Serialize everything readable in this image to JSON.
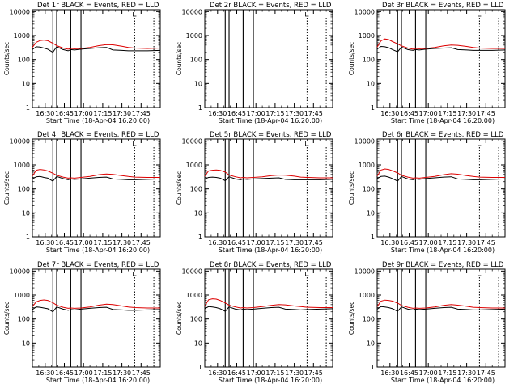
{
  "colors": {
    "events": "#000000",
    "lld": "#dd0000",
    "background": "#ffffff"
  },
  "panel_common": {
    "ylabel": "Counts/sec",
    "xlabel": "Start Time (18-Apr-04 16:20:00)",
    "x_ticks": [
      "16:30",
      "16:45",
      "17:00",
      "17:15",
      "17:30",
      "17:45"
    ],
    "y_ticks": [
      "1",
      "10",
      "100",
      "1000",
      "10000"
    ]
  },
  "chart_data": [
    {
      "type": "line",
      "title": "Det 1r BLACK = Events, RED = LLD",
      "xlim_min": [
        0,
        100
      ],
      "ylim": [
        1,
        12000
      ],
      "log_y": true,
      "solid_vlines_min": [
        16,
        19,
        30,
        38
      ],
      "dotted_vlines_min": [
        80,
        95
      ],
      "series": [
        {
          "role": "events",
          "x": [
            0,
            3,
            6,
            9,
            12,
            16,
            19,
            24,
            28,
            30,
            33,
            38,
            45,
            52,
            58,
            63,
            70,
            75,
            80,
            90,
            100
          ],
          "y": [
            260,
            340,
            330,
            300,
            270,
            200,
            340,
            260,
            230,
            260,
            250,
            270,
            290,
            310,
            320,
            250,
            240,
            230,
            230,
            230,
            240
          ]
        },
        {
          "role": "lld",
          "x": [
            0,
            3,
            6,
            9,
            12,
            16,
            19,
            24,
            28,
            30,
            33,
            38,
            45,
            52,
            58,
            63,
            70,
            75,
            80,
            90,
            100
          ],
          "y": [
            320,
            520,
            620,
            650,
            610,
            480,
            380,
            300,
            270,
            290,
            280,
            290,
            320,
            380,
            420,
            410,
            360,
            320,
            300,
            290,
            300
          ]
        }
      ]
    },
    {
      "type": "line",
      "title": "Det 2r BLACK = Events, RED = LLD",
      "xlim_min": [
        0,
        100
      ],
      "ylim": [
        1,
        12000
      ],
      "log_y": true,
      "solid_vlines_min": [
        16,
        19,
        30,
        38
      ],
      "dotted_vlines_min": [
        80,
        95
      ],
      "series": []
    },
    {
      "type": "line",
      "title": "Det 3r BLACK = Events, RED = LLD",
      "xlim_min": [
        0,
        100
      ],
      "ylim": [
        1,
        12000
      ],
      "log_y": true,
      "solid_vlines_min": [
        16,
        19,
        30,
        38
      ],
      "dotted_vlines_min": [
        80,
        95
      ],
      "series": [
        {
          "role": "events",
          "x": [
            0,
            3,
            6,
            9,
            12,
            16,
            19,
            24,
            28,
            30,
            33,
            38,
            45,
            52,
            58,
            63,
            70,
            75,
            80,
            90,
            100
          ],
          "y": [
            270,
            350,
            340,
            310,
            260,
            210,
            330,
            260,
            240,
            260,
            250,
            270,
            290,
            300,
            310,
            260,
            250,
            240,
            240,
            240,
            250
          ]
        },
        {
          "role": "lld",
          "x": [
            0,
            3,
            6,
            9,
            12,
            16,
            19,
            24,
            28,
            30,
            33,
            38,
            45,
            52,
            58,
            63,
            70,
            75,
            80,
            90,
            100
          ],
          "y": [
            330,
            600,
            720,
            680,
            560,
            450,
            370,
            300,
            270,
            290,
            280,
            290,
            320,
            370,
            400,
            390,
            350,
            320,
            300,
            290,
            290
          ]
        }
      ]
    },
    {
      "type": "line",
      "title": "Det 4r BLACK = Events, RED = LLD",
      "xlim_min": [
        0,
        100
      ],
      "ylim": [
        1,
        12000
      ],
      "log_y": true,
      "solid_vlines_min": [
        16,
        19,
        30,
        38
      ],
      "dotted_vlines_min": [
        80,
        95
      ],
      "series": [
        {
          "role": "events",
          "x": [
            0,
            3,
            6,
            9,
            12,
            16,
            19,
            24,
            28,
            30,
            33,
            38,
            45,
            52,
            58,
            63,
            70,
            75,
            80,
            90,
            100
          ],
          "y": [
            260,
            320,
            330,
            300,
            280,
            210,
            330,
            270,
            240,
            260,
            250,
            260,
            280,
            300,
            310,
            260,
            250,
            240,
            240,
            250,
            260
          ]
        },
        {
          "role": "lld",
          "x": [
            0,
            3,
            6,
            9,
            12,
            16,
            19,
            24,
            28,
            30,
            33,
            38,
            45,
            52,
            58,
            63,
            70,
            75,
            80,
            90,
            100
          ],
          "y": [
            340,
            600,
            650,
            620,
            560,
            450,
            370,
            310,
            280,
            290,
            280,
            300,
            330,
            390,
            420,
            400,
            360,
            330,
            310,
            300,
            300
          ]
        }
      ]
    },
    {
      "type": "line",
      "title": "Det 5r BLACK = Events, RED = LLD",
      "xlim_min": [
        0,
        100
      ],
      "ylim": [
        1,
        12000
      ],
      "log_y": true,
      "solid_vlines_min": [
        16,
        19,
        30,
        38
      ],
      "dotted_vlines_min": [
        80,
        95
      ],
      "series": [
        {
          "role": "events",
          "x": [
            0,
            3,
            6,
            9,
            12,
            16,
            19,
            24,
            28,
            30,
            33,
            38,
            45,
            52,
            58,
            63,
            70,
            75,
            80,
            90,
            100
          ],
          "y": [
            260,
            300,
            310,
            300,
            280,
            220,
            320,
            260,
            240,
            260,
            250,
            260,
            270,
            280,
            290,
            250,
            240,
            240,
            240,
            240,
            250
          ]
        },
        {
          "role": "lld",
          "x": [
            0,
            3,
            6,
            9,
            12,
            16,
            19,
            24,
            28,
            30,
            33,
            38,
            45,
            52,
            58,
            63,
            70,
            75,
            80,
            90,
            100
          ],
          "y": [
            340,
            560,
            600,
            620,
            590,
            500,
            380,
            320,
            290,
            300,
            290,
            300,
            320,
            360,
            380,
            370,
            340,
            310,
            300,
            290,
            290
          ]
        }
      ]
    },
    {
      "type": "line",
      "title": "Det 6r BLACK = Events, RED = LLD",
      "xlim_min": [
        0,
        100
      ],
      "ylim": [
        1,
        12000
      ],
      "log_y": true,
      "solid_vlines_min": [
        16,
        19,
        30,
        38
      ],
      "dotted_vlines_min": [
        80,
        95
      ],
      "series": [
        {
          "role": "events",
          "x": [
            0,
            3,
            6,
            9,
            12,
            16,
            19,
            24,
            28,
            30,
            33,
            38,
            45,
            52,
            58,
            63,
            70,
            75,
            80,
            90,
            100
          ],
          "y": [
            270,
            330,
            340,
            310,
            270,
            210,
            330,
            260,
            240,
            260,
            250,
            270,
            290,
            310,
            320,
            260,
            250,
            240,
            240,
            250,
            260
          ]
        },
        {
          "role": "lld",
          "x": [
            0,
            3,
            6,
            9,
            12,
            16,
            19,
            24,
            28,
            30,
            33,
            38,
            45,
            52,
            58,
            63,
            70,
            75,
            80,
            90,
            100
          ],
          "y": [
            340,
            610,
            680,
            650,
            570,
            460,
            370,
            310,
            280,
            290,
            280,
            300,
            330,
            390,
            430,
            410,
            360,
            330,
            310,
            300,
            300
          ]
        }
      ]
    },
    {
      "type": "line",
      "title": "Det 7r BLACK = Events, RED = LLD",
      "xlim_min": [
        0,
        100
      ],
      "ylim": [
        1,
        12000
      ],
      "log_y": true,
      "solid_vlines_min": [
        16,
        19,
        30,
        38
      ],
      "dotted_vlines_min": [
        80,
        95
      ],
      "series": [
        {
          "role": "events",
          "x": [
            0,
            3,
            6,
            9,
            12,
            16,
            19,
            24,
            28,
            30,
            33,
            38,
            45,
            52,
            58,
            63,
            70,
            75,
            80,
            90,
            100
          ],
          "y": [
            250,
            320,
            310,
            290,
            270,
            200,
            320,
            260,
            230,
            250,
            240,
            260,
            280,
            300,
            310,
            250,
            240,
            230,
            230,
            240,
            250
          ]
        },
        {
          "role": "lld",
          "x": [
            0,
            3,
            6,
            9,
            12,
            16,
            19,
            24,
            28,
            30,
            33,
            38,
            45,
            52,
            58,
            63,
            70,
            75,
            80,
            90,
            100
          ],
          "y": [
            330,
            520,
            600,
            630,
            600,
            480,
            380,
            310,
            280,
            290,
            280,
            290,
            320,
            380,
            420,
            400,
            350,
            320,
            300,
            290,
            290
          ]
        }
      ]
    },
    {
      "type": "line",
      "title": "Det 8r BLACK = Events, RED = LLD",
      "xlim_min": [
        0,
        100
      ],
      "ylim": [
        1,
        12000
      ],
      "log_y": true,
      "solid_vlines_min": [
        16,
        19,
        30,
        38
      ],
      "dotted_vlines_min": [
        80,
        95
      ],
      "series": [
        {
          "role": "events",
          "x": [
            0,
            3,
            6,
            9,
            12,
            16,
            19,
            24,
            28,
            30,
            33,
            38,
            45,
            52,
            58,
            63,
            70,
            75,
            80,
            90,
            100
          ],
          "y": [
            270,
            330,
            320,
            300,
            270,
            210,
            320,
            260,
            240,
            260,
            250,
            260,
            280,
            300,
            310,
            260,
            250,
            240,
            250,
            260,
            270
          ]
        },
        {
          "role": "lld",
          "x": [
            0,
            3,
            6,
            9,
            12,
            16,
            19,
            24,
            28,
            30,
            33,
            38,
            45,
            52,
            58,
            63,
            70,
            75,
            80,
            90,
            100
          ],
          "y": [
            340,
            640,
            700,
            680,
            600,
            470,
            380,
            320,
            290,
            300,
            290,
            300,
            330,
            370,
            400,
            390,
            350,
            330,
            310,
            300,
            300
          ]
        }
      ]
    },
    {
      "type": "line",
      "title": "Det 9r BLACK = Events, RED = LLD",
      "xlim_min": [
        0,
        100
      ],
      "ylim": [
        1,
        12000
      ],
      "log_y": true,
      "solid_vlines_min": [
        16,
        19,
        30,
        38
      ],
      "dotted_vlines_min": [
        80,
        95
      ],
      "series": [
        {
          "role": "events",
          "x": [
            0,
            3,
            6,
            9,
            12,
            16,
            19,
            24,
            28,
            30,
            33,
            38,
            45,
            52,
            58,
            63,
            70,
            75,
            80,
            90,
            100
          ],
          "y": [
            260,
            330,
            320,
            300,
            270,
            210,
            320,
            260,
            240,
            260,
            250,
            260,
            280,
            300,
            310,
            260,
            250,
            240,
            240,
            250,
            260
          ]
        },
        {
          "role": "lld",
          "x": [
            0,
            3,
            6,
            9,
            12,
            16,
            19,
            24,
            28,
            30,
            33,
            38,
            45,
            52,
            58,
            63,
            70,
            75,
            80,
            90,
            100
          ],
          "y": [
            330,
            560,
            620,
            600,
            560,
            460,
            370,
            310,
            280,
            290,
            280,
            290,
            320,
            370,
            400,
            380,
            340,
            310,
            300,
            290,
            290
          ]
        }
      ]
    }
  ]
}
